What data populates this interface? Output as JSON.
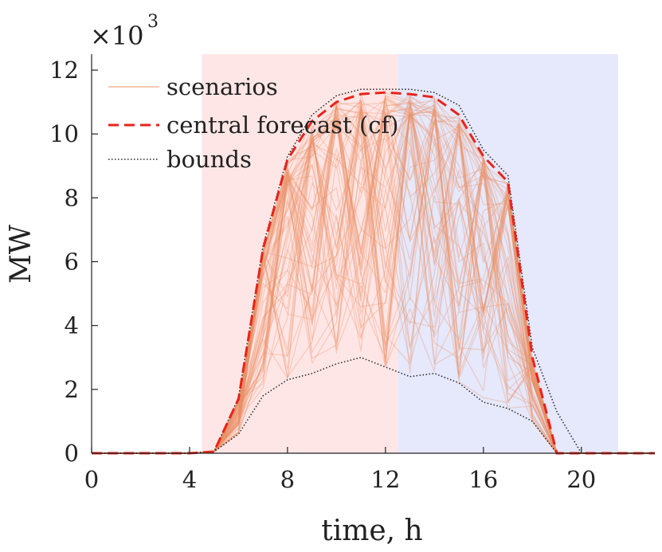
{
  "chart_data": {
    "type": "line",
    "title": "",
    "xlabel": "time, h",
    "ylabel": "MW",
    "y_multiplier": {
      "base": "×10",
      "exponent": "3"
    },
    "xlim": [
      0,
      23
    ],
    "ylim": [
      0,
      12.5
    ],
    "xticks": [
      0,
      4,
      8,
      12,
      16,
      20
    ],
    "yticks": [
      0,
      2,
      4,
      6,
      8,
      10,
      12
    ],
    "grid": false,
    "legend_position": "top-left",
    "shaded_regions": [
      {
        "x0": 4.5,
        "x1": 12.5,
        "color": "#ffe6e6"
      },
      {
        "x0": 12.5,
        "x1": 21.5,
        "color": "#e6e8fb"
      }
    ],
    "hours": [
      0,
      1,
      2,
      3,
      4,
      5,
      6,
      7,
      8,
      9,
      10,
      11,
      12,
      13,
      14,
      15,
      16,
      17,
      18,
      19,
      20,
      21,
      22,
      23
    ],
    "series": [
      {
        "name": "scenarios",
        "color": "#e98f65",
        "style": "solid",
        "description": "ensemble of scenario trajectories between lower and upper bounds",
        "count": 60
      },
      {
        "name": "central forecast (cf)",
        "color": "#e8231b",
        "style": "dashed",
        "values": [
          0,
          0,
          0,
          0,
          0,
          0.05,
          1.7,
          6.4,
          9.2,
          10.4,
          11.0,
          11.25,
          11.3,
          11.25,
          11.15,
          10.6,
          9.3,
          8.5,
          3.0,
          0,
          0,
          0,
          0,
          0
        ]
      },
      {
        "name": "bounds",
        "color": "#222222",
        "style": "dotted",
        "upper": [
          0,
          0,
          0,
          0,
          0,
          0.05,
          1.75,
          6.5,
          9.3,
          10.6,
          11.2,
          11.4,
          11.4,
          11.4,
          11.3,
          10.9,
          9.5,
          8.7,
          3.3,
          1.3,
          0,
          0,
          0,
          0
        ],
        "lower": [
          0,
          0,
          0,
          0,
          0,
          0.05,
          0.6,
          1.8,
          2.3,
          2.5,
          2.8,
          3.0,
          2.7,
          2.4,
          2.5,
          2.2,
          1.6,
          1.4,
          1.0,
          0,
          0,
          0,
          0,
          0
        ]
      }
    ]
  }
}
